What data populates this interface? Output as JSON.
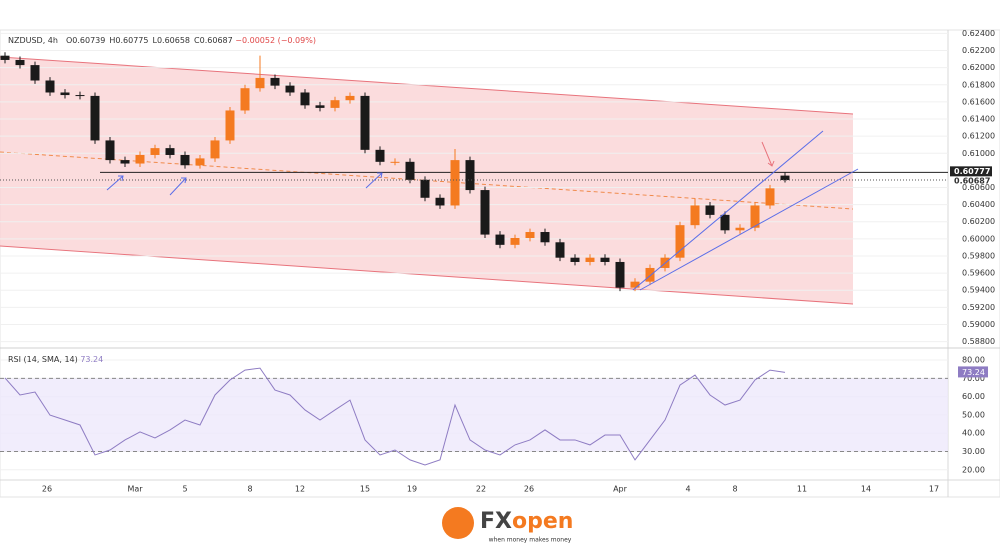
{
  "chart_data": {
    "type": "candlestick",
    "symbol": "NZDUSD, 4h",
    "ohlc_prefixes": [
      "O",
      "H",
      "L",
      "C"
    ],
    "change": "−0.00052 (−0.09%)",
    "up_color": "#f47a20",
    "down_color": "#1a1a1a",
    "open": [
      0.6214,
      0.6209,
      0.6203,
      0.6185,
      0.6171,
      0.6168,
      0.6167,
      0.6115,
      0.6092,
      0.6088,
      0.6098,
      0.6106,
      0.6098,
      0.6086,
      0.6094,
      0.6115,
      0.615,
      0.6176,
      0.6188,
      0.6179,
      0.6171,
      0.6156,
      0.6153,
      0.6162,
      0.6167,
      0.6104,
      0.609,
      0.609,
      0.6069,
      0.6048,
      0.6039,
      0.6092,
      0.6057,
      0.6005,
      0.5993,
      0.6001,
      0.6008,
      0.5996,
      0.5978,
      0.5973,
      0.5978,
      0.5973,
      0.5943,
      0.595,
      0.5966,
      0.5978,
      0.6016,
      0.6039,
      0.6028,
      0.601,
      0.6013,
      0.6039,
      0.60739
    ],
    "high": [
      0.6218,
      0.6213,
      0.6207,
      0.6189,
      0.6175,
      0.6172,
      0.6171,
      0.6119,
      0.6096,
      0.6102,
      0.611,
      0.611,
      0.6102,
      0.6098,
      0.6119,
      0.6154,
      0.618,
      0.6214,
      0.6192,
      0.6183,
      0.6175,
      0.616,
      0.6166,
      0.6171,
      0.6171,
      0.6108,
      0.6094,
      0.6094,
      0.6073,
      0.6052,
      0.6105,
      0.6096,
      0.6061,
      0.6009,
      0.6005,
      0.6012,
      0.6012,
      0.6,
      0.5982,
      0.5982,
      0.5982,
      0.5977,
      0.5954,
      0.597,
      0.5982,
      0.602,
      0.6047,
      0.6043,
      0.6032,
      0.6017,
      0.6043,
      0.6063,
      0.60775
    ],
    "low": [
      0.6205,
      0.6199,
      0.6181,
      0.6167,
      0.6164,
      0.6163,
      0.6111,
      0.6088,
      0.6084,
      0.6084,
      0.6094,
      0.6094,
      0.6082,
      0.6082,
      0.609,
      0.6111,
      0.6146,
      0.6172,
      0.6175,
      0.6167,
      0.6152,
      0.6149,
      0.6149,
      0.6158,
      0.61,
      0.6086,
      0.6086,
      0.6065,
      0.6044,
      0.6035,
      0.6035,
      0.6053,
      0.6001,
      0.5989,
      0.5989,
      0.5997,
      0.5992,
      0.5974,
      0.5969,
      0.5969,
      0.5969,
      0.5939,
      0.5939,
      0.5946,
      0.5962,
      0.5974,
      0.6012,
      0.6024,
      0.6006,
      0.6006,
      0.6009,
      0.6035,
      0.60658
    ],
    "close": [
      0.6209,
      0.6203,
      0.6185,
      0.6171,
      0.6168,
      0.6167,
      0.6115,
      0.6092,
      0.6088,
      0.6098,
      0.6106,
      0.6098,
      0.6086,
      0.6094,
      0.6115,
      0.615,
      0.6176,
      0.6188,
      0.6179,
      0.6171,
      0.6156,
      0.6153,
      0.6162,
      0.6167,
      0.6104,
      0.609,
      0.609,
      0.6069,
      0.6048,
      0.6039,
      0.6092,
      0.6057,
      0.6005,
      0.5993,
      0.6001,
      0.6008,
      0.5996,
      0.5978,
      0.5973,
      0.5978,
      0.5973,
      0.5943,
      0.595,
      0.5966,
      0.5978,
      0.6016,
      0.6039,
      0.6028,
      0.601,
      0.6013,
      0.6039,
      0.6059,
      0.60687
    ],
    "resistance": 0.60777,
    "ylim": [
      0.5876,
      0.6244
    ],
    "yticks": [
      {
        "value": 0.624,
        "label": "0.62400"
      },
      {
        "value": 0.622,
        "label": "0.62200"
      },
      {
        "value": 0.62,
        "label": "0.62000"
      },
      {
        "value": 0.618,
        "label": "0.61800"
      },
      {
        "value": 0.616,
        "label": "0.61600"
      },
      {
        "value": 0.614,
        "label": "0.61400"
      },
      {
        "value": 0.612,
        "label": "0.61200"
      },
      {
        "value": 0.61,
        "label": "0.61000"
      },
      {
        "value": 0.606,
        "label": "0.60600"
      },
      {
        "value": 0.604,
        "label": "0.60400"
      },
      {
        "value": 0.602,
        "label": "0.60200"
      },
      {
        "value": 0.6,
        "label": "0.60000"
      },
      {
        "value": 0.598,
        "label": "0.59800"
      },
      {
        "value": 0.596,
        "label": "0.59600"
      },
      {
        "value": 0.594,
        "label": "0.59400"
      },
      {
        "value": 0.592,
        "label": "0.59200"
      },
      {
        "value": 0.59,
        "label": "0.59000"
      },
      {
        "value": 0.588,
        "label": "0.58800"
      }
    ],
    "xlabels": [
      "26",
      "Mar",
      "5",
      "8",
      "12",
      "15",
      "19",
      "22",
      "26",
      "Apr",
      "4",
      "8",
      "11",
      "14",
      "17"
    ],
    "rsi": {
      "title": "RSI (14, SMA, 14)",
      "color": "#8e7cc3",
      "values": [
        70.2,
        60.9,
        62.5,
        49.9,
        47.2,
        44.5,
        28.1,
        30.8,
        36.3,
        40.7,
        37.4,
        41.8,
        47.2,
        44.5,
        60.9,
        69.1,
        74.5,
        75.6,
        63.6,
        60.9,
        52.7,
        47.2,
        52.7,
        58.1,
        36.3,
        28.1,
        30.8,
        25.4,
        22.6,
        25.4,
        55.4,
        36.3,
        30.8,
        28.1,
        33.6,
        36.3,
        41.8,
        36.3,
        36.3,
        33.6,
        39.0,
        39.0,
        25.4,
        36.3,
        47.2,
        66.3,
        71.8,
        60.9,
        55.4,
        58.1,
        69.1,
        74.5,
        73.24
      ],
      "ylim": [
        14.4,
        85.5
      ],
      "band": [
        30,
        70
      ],
      "yticks": [
        {
          "value": 80,
          "label": "80.00"
        },
        {
          "value": 70,
          "label": "70.00"
        },
        {
          "value": 60,
          "label": "60.00"
        },
        {
          "value": 50,
          "label": "50.00"
        },
        {
          "value": 40,
          "label": "40.00"
        },
        {
          "value": 30,
          "label": "30.00"
        },
        {
          "value": 20,
          "label": "20.00"
        }
      ]
    },
    "logo": {
      "fx": "FX",
      "open": "open",
      "tagline": "when money makes money"
    }
  }
}
